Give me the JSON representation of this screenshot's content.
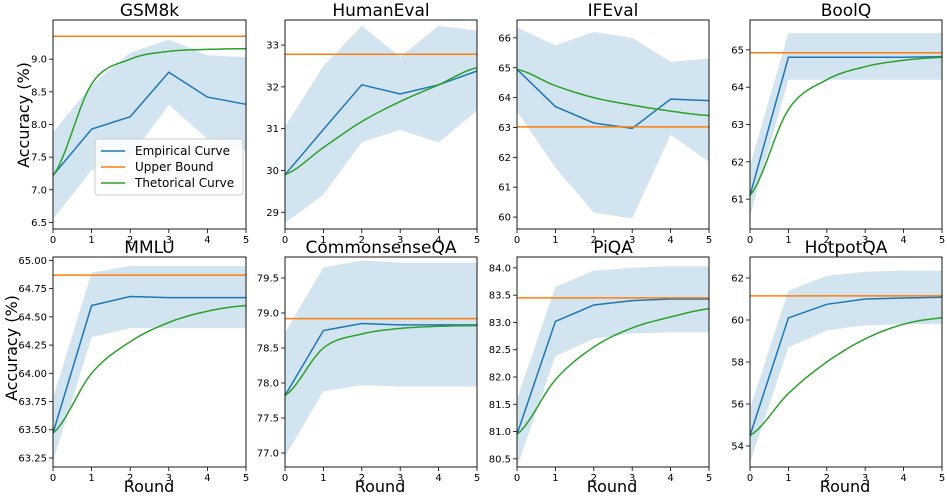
{
  "figure": {
    "ylabel": "Accuracy (%)",
    "xlabel": "Round"
  },
  "colors": {
    "empirical": "#1f77b4",
    "upper": "#ff7f0e",
    "theoretical": "#2ca02c",
    "band": "#1f77b4"
  },
  "legend": {
    "entries": [
      "Empirical Curve",
      "Upper Bound",
      "Thetorical Curve"
    ]
  },
  "chart_data": [
    {
      "type": "line",
      "title": "GSM8k",
      "x": [
        0,
        1,
        2,
        3,
        4,
        5
      ],
      "xlim": [
        0,
        5
      ],
      "ylim": [
        6.4,
        9.6
      ],
      "yticks": [
        6.5,
        7.0,
        7.5,
        8.0,
        8.5,
        9.0
      ],
      "ytick_labels": [
        "6.5",
        "7.0",
        "7.5",
        "8.0",
        "8.5",
        "9.0"
      ],
      "series": [
        {
          "name": "Empirical Curve",
          "values": [
            7.22,
            7.93,
            8.12,
            8.8,
            8.42,
            8.31
          ]
        },
        {
          "name": "Upper Bound",
          "values": [
            9.35,
            9.35,
            9.35,
            9.35,
            9.35,
            9.35
          ]
        },
        {
          "name": "Thetorical Curve",
          "values": [
            7.22,
            8.62,
            9.0,
            9.12,
            9.15,
            9.16
          ]
        }
      ],
      "band": {
        "lower": [
          6.55,
          7.3,
          7.5,
          8.3,
          7.78,
          7.6
        ],
        "upper": [
          7.88,
          8.6,
          9.1,
          9.3,
          9.06,
          9.03
        ]
      }
    },
    {
      "type": "line",
      "title": "HumanEval",
      "x": [
        0,
        1,
        2,
        3,
        4,
        5
      ],
      "xlim": [
        0,
        5
      ],
      "ylim": [
        28.6,
        33.6
      ],
      "yticks": [
        29,
        30,
        31,
        32,
        33
      ],
      "ytick_labels": [
        "29",
        "30",
        "31",
        "32",
        "33"
      ],
      "series": [
        {
          "name": "Empirical Curve",
          "values": [
            29.9,
            30.98,
            32.05,
            31.83,
            32.05,
            32.38
          ]
        },
        {
          "name": "Upper Bound",
          "values": [
            32.78,
            32.78,
            32.78,
            32.78,
            32.78,
            32.78
          ]
        },
        {
          "name": "Thetorical Curve",
          "values": [
            29.9,
            30.55,
            31.17,
            31.65,
            32.05,
            32.46
          ]
        }
      ],
      "band": {
        "lower": [
          28.75,
          29.42,
          30.68,
          30.97,
          30.67,
          31.43
        ],
        "upper": [
          31.05,
          32.5,
          33.46,
          32.72,
          33.46,
          33.35
        ]
      }
    },
    {
      "type": "line",
      "title": "IFEval",
      "x": [
        0,
        1,
        2,
        3,
        4,
        5
      ],
      "xlim": [
        0,
        5
      ],
      "ylim": [
        59.6,
        66.6
      ],
      "yticks": [
        60,
        61,
        62,
        63,
        64,
        65,
        66
      ],
      "ytick_labels": [
        "60",
        "61",
        "62",
        "63",
        "64",
        "65",
        "66"
      ],
      "series": [
        {
          "name": "Empirical Curve",
          "values": [
            64.95,
            63.7,
            63.15,
            62.97,
            63.95,
            63.9
          ]
        },
        {
          "name": "Upper Bound",
          "values": [
            63.02,
            63.02,
            63.02,
            63.02,
            63.02,
            63.02
          ]
        },
        {
          "name": "Thetorical Curve",
          "values": [
            64.95,
            64.4,
            64.0,
            63.75,
            63.55,
            63.4
          ]
        }
      ],
      "band": {
        "lower": [
          63.55,
          61.65,
          60.15,
          59.95,
          62.75,
          61.85
        ],
        "upper": [
          66.35,
          65.75,
          66.2,
          66.0,
          65.2,
          65.3
        ]
      }
    },
    {
      "type": "line",
      "title": "BoolQ",
      "x": [
        0,
        1,
        2,
        3,
        4,
        5
      ],
      "xlim": [
        0,
        5
      ],
      "ylim": [
        60.2,
        65.8
      ],
      "yticks": [
        61,
        62,
        63,
        64,
        65
      ],
      "ytick_labels": [
        "61",
        "62",
        "63",
        "64",
        "65"
      ],
      "series": [
        {
          "name": "Empirical Curve",
          "values": [
            61.1,
            64.8,
            64.8,
            64.8,
            64.8,
            64.82
          ]
        },
        {
          "name": "Upper Bound",
          "values": [
            64.92,
            64.92,
            64.92,
            64.92,
            64.92,
            64.92
          ]
        },
        {
          "name": "Thetorical Curve",
          "values": [
            61.1,
            63.4,
            64.2,
            64.55,
            64.72,
            64.8
          ]
        }
      ],
      "band": {
        "lower": [
          60.55,
          64.2,
          64.2,
          64.2,
          64.2,
          64.2
        ],
        "upper": [
          61.9,
          65.45,
          65.45,
          65.45,
          65.45,
          65.45
        ]
      }
    },
    {
      "type": "line",
      "title": "MMLU",
      "x": [
        0,
        1,
        2,
        3,
        4,
        5
      ],
      "xlim": [
        0,
        5
      ],
      "ylim": [
        63.17,
        65.03
      ],
      "yticks": [
        63.25,
        63.5,
        63.75,
        64.0,
        64.25,
        64.5,
        64.75,
        65.0
      ],
      "ytick_labels": [
        "63.25",
        "63.50",
        "63.75",
        "64.00",
        "64.25",
        "64.50",
        "64.75",
        "65.00"
      ],
      "series": [
        {
          "name": "Empirical Curve",
          "values": [
            63.47,
            64.6,
            64.68,
            64.67,
            64.67,
            64.67
          ]
        },
        {
          "name": "Upper Bound",
          "values": [
            64.87,
            64.87,
            64.87,
            64.87,
            64.87,
            64.87
          ]
        },
        {
          "name": "Thetorical Curve",
          "values": [
            63.47,
            64.0,
            64.28,
            64.45,
            64.55,
            64.6
          ]
        }
      ],
      "band": {
        "lower": [
          63.22,
          64.32,
          64.4,
          64.4,
          64.4,
          64.4
        ],
        "upper": [
          63.78,
          64.89,
          64.95,
          64.95,
          64.95,
          64.95
        ]
      }
    },
    {
      "type": "line",
      "title": "CommonsenseQA",
      "x": [
        0,
        1,
        2,
        3,
        4,
        5
      ],
      "xlim": [
        0,
        5
      ],
      "ylim": [
        76.8,
        79.8
      ],
      "yticks": [
        77.0,
        77.5,
        78.0,
        78.5,
        79.0,
        79.5
      ],
      "ytick_labels": [
        "77.0",
        "77.5",
        "78.0",
        "78.5",
        "79.0",
        "79.5"
      ],
      "series": [
        {
          "name": "Empirical Curve",
          "values": [
            77.82,
            78.75,
            78.85,
            78.83,
            78.83,
            78.83
          ]
        },
        {
          "name": "Upper Bound",
          "values": [
            78.92,
            78.92,
            78.92,
            78.92,
            78.92,
            78.92
          ]
        },
        {
          "name": "Thetorical Curve",
          "values": [
            77.82,
            78.5,
            78.7,
            78.78,
            78.81,
            78.82
          ]
        }
      ],
      "band": {
        "lower": [
          76.95,
          77.88,
          77.97,
          77.95,
          77.95,
          77.95
        ],
        "upper": [
          78.72,
          79.65,
          79.75,
          79.72,
          79.72,
          79.72
        ]
      }
    },
    {
      "type": "line",
      "title": "PiQA",
      "x": [
        0,
        1,
        2,
        3,
        4,
        5
      ],
      "xlim": [
        0,
        5
      ],
      "ylim": [
        80.35,
        84.2
      ],
      "yticks": [
        80.5,
        81.0,
        81.5,
        82.0,
        82.5,
        83.0,
        83.5,
        84.0
      ],
      "ytick_labels": [
        "80.5",
        "81.0",
        "81.5",
        "82.0",
        "82.5",
        "83.0",
        "83.5",
        "84.0"
      ],
      "series": [
        {
          "name": "Empirical Curve",
          "values": [
            80.95,
            83.02,
            83.32,
            83.4,
            83.43,
            83.43
          ]
        },
        {
          "name": "Upper Bound",
          "values": [
            83.45,
            83.45,
            83.45,
            83.45,
            83.45,
            83.45
          ]
        },
        {
          "name": "Thetorical Curve",
          "values": [
            80.95,
            81.95,
            82.55,
            82.9,
            83.1,
            83.25
          ]
        }
      ],
      "band": {
        "lower": [
          80.35,
          82.38,
          82.7,
          82.8,
          82.82,
          82.82
        ],
        "upper": [
          81.6,
          83.65,
          83.95,
          84.0,
          84.03,
          84.03
        ]
      }
    },
    {
      "type": "line",
      "title": "HotpotQA",
      "x": [
        0,
        1,
        2,
        3,
        4,
        5
      ],
      "xlim": [
        0,
        5
      ],
      "ylim": [
        53.0,
        63.0
      ],
      "yticks": [
        54,
        56,
        58,
        60,
        62
      ],
      "ytick_labels": [
        "54",
        "56",
        "58",
        "60",
        "62"
      ],
      "series": [
        {
          "name": "Empirical Curve",
          "values": [
            54.5,
            60.1,
            60.75,
            61.0,
            61.05,
            61.08
          ]
        },
        {
          "name": "Upper Bound",
          "values": [
            61.15,
            61.15,
            61.15,
            61.15,
            61.15,
            61.15
          ]
        },
        {
          "name": "Thetorical Curve",
          "values": [
            54.5,
            56.5,
            58.0,
            59.1,
            59.8,
            60.1
          ]
        }
      ],
      "band": {
        "lower": [
          53.2,
          58.7,
          59.5,
          59.75,
          59.8,
          59.8
        ],
        "upper": [
          55.8,
          61.4,
          62.1,
          62.3,
          62.35,
          62.35
        ]
      }
    }
  ]
}
